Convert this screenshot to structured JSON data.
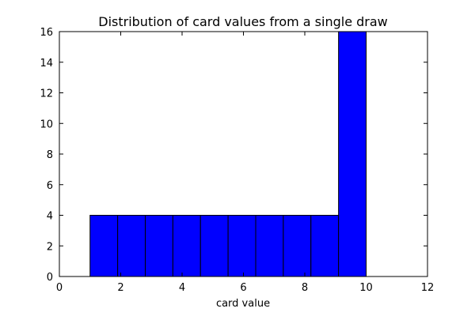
{
  "chart_data": {
    "type": "bar",
    "title": "Distribution of card values from a single draw",
    "xlabel": "card value",
    "ylabel": "",
    "xlim": [
      0,
      12
    ],
    "ylim": [
      0,
      16
    ],
    "xticks": [
      0,
      2,
      4,
      6,
      8,
      10,
      12
    ],
    "yticks": [
      0,
      2,
      4,
      6,
      8,
      10,
      12,
      14,
      16
    ],
    "grid": false,
    "bar_color": "#0000ff",
    "bins": [
      {
        "start": 1.0,
        "end": 1.9,
        "count": 4
      },
      {
        "start": 1.9,
        "end": 2.8,
        "count": 4
      },
      {
        "start": 2.8,
        "end": 3.7,
        "count": 4
      },
      {
        "start": 3.7,
        "end": 4.6,
        "count": 4
      },
      {
        "start": 4.6,
        "end": 5.5,
        "count": 4
      },
      {
        "start": 5.5,
        "end": 6.4,
        "count": 4
      },
      {
        "start": 6.4,
        "end": 7.3,
        "count": 4
      },
      {
        "start": 7.3,
        "end": 8.2,
        "count": 4
      },
      {
        "start": 8.2,
        "end": 9.1,
        "count": 4
      },
      {
        "start": 9.1,
        "end": 10.0,
        "count": 16
      }
    ]
  }
}
